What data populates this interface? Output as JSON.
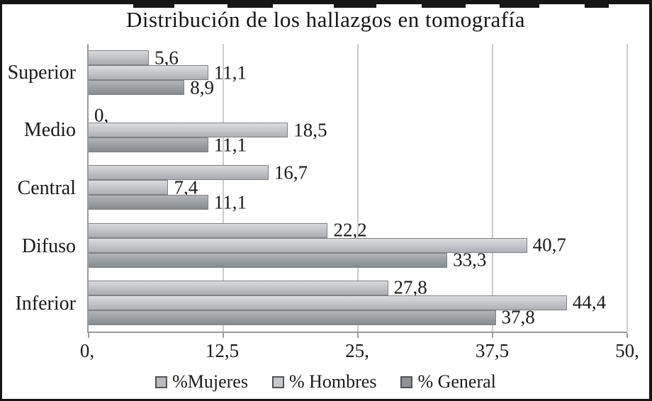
{
  "title": "Distribución de los hallazgos en tomografía",
  "chart_data": {
    "type": "bar",
    "orientation": "horizontal",
    "title": "Distribución de los hallazgos en tomografía",
    "categories": [
      "Superior",
      "Medio",
      "Central",
      "Difuso",
      "Inferior"
    ],
    "series": [
      {
        "name": "%Mujeres",
        "key": "mujeres",
        "values": [
          5.6,
          0,
          16.7,
          22.2,
          27.8
        ],
        "value_labels": [
          "5,6",
          "0,",
          "16,7",
          "22,2",
          "27,8"
        ],
        "color": "#b9bbbd"
      },
      {
        "name": "% Hombres",
        "key": "hombres",
        "values": [
          11.1,
          18.5,
          7.4,
          40.7,
          44.4
        ],
        "value_labels": [
          "11,1",
          "18,5",
          "7,4",
          "40,7",
          "44,4"
        ],
        "color": "#c6c8ca"
      },
      {
        "name": "% General",
        "key": "general",
        "values": [
          8.9,
          11.1,
          11.1,
          33.3,
          37.8
        ],
        "value_labels": [
          "8,9",
          "11,1",
          "11,1",
          "33,3",
          "37,8"
        ],
        "color": "#8f9195"
      }
    ],
    "xlim": [
      0,
      50
    ],
    "x_tick_labels": [
      "0,",
      "12,5",
      "25,",
      "37,5",
      "50,"
    ],
    "x_tick_values": [
      0,
      12.5,
      25,
      37.5,
      50
    ],
    "grid": true,
    "legend_position": "bottom",
    "ylabel": "",
    "xlabel": ""
  },
  "colors": {
    "frame_border": "#161616",
    "axis_line": "#9b9b9b",
    "gridline": "#cbcbcb",
    "text": "#1a1a1a"
  }
}
